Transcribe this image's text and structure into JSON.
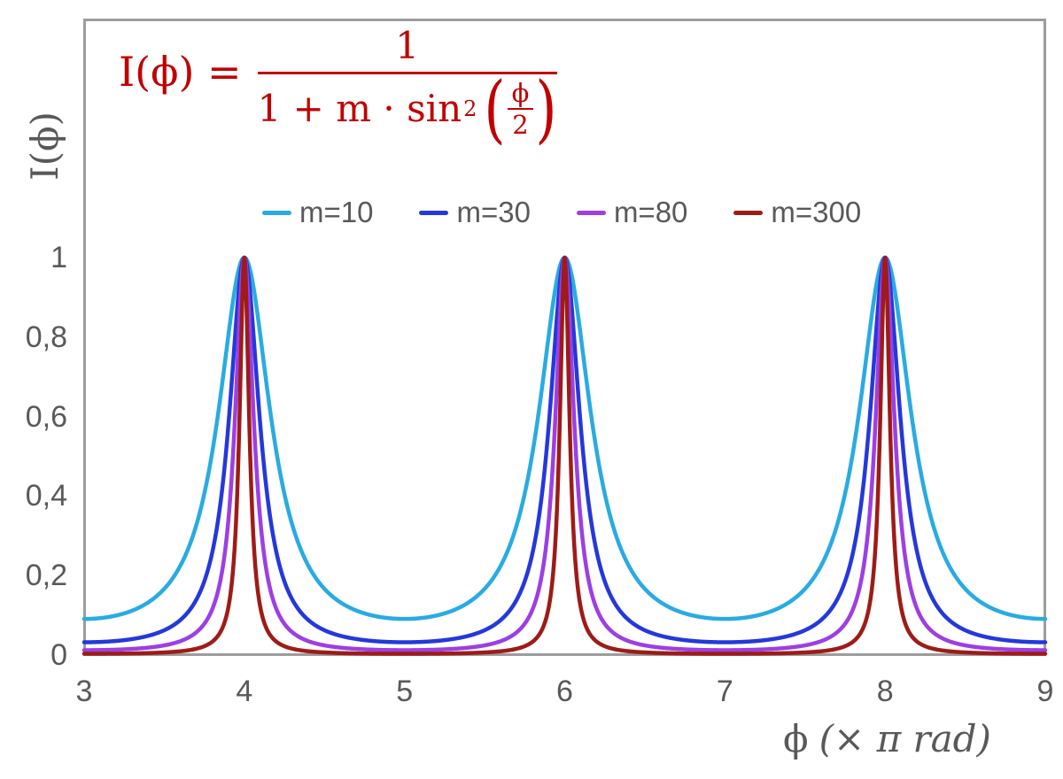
{
  "formula": {
    "lhs": "I(ϕ) =",
    "numerator": "1",
    "den_prefix": "1 + m · sin",
    "den_sup": "2",
    "paren_open": "(",
    "paren_close": ")",
    "inner_num": "ϕ",
    "inner_den": "2",
    "color": "#C00000"
  },
  "legend": {
    "items": [
      {
        "label": "m=10",
        "color": "#29ABE2"
      },
      {
        "label": "m=30",
        "color": "#2438DC"
      },
      {
        "label": "m=80",
        "color": "#9C3FE4"
      },
      {
        "label": "m=300",
        "color": "#9E1B17"
      }
    ]
  },
  "y_axis": {
    "label": "I(ϕ)",
    "ticks": [
      {
        "label": "1",
        "value": 1.0
      },
      {
        "label": "0,8",
        "value": 0.8
      },
      {
        "label": "0,6",
        "value": 0.6
      },
      {
        "label": "0,4",
        "value": 0.4
      },
      {
        "label": "0,2",
        "value": 0.2
      },
      {
        "label": "0",
        "value": 0.0
      }
    ]
  },
  "x_axis": {
    "label_phi": "ϕ",
    "label_unit": "(× π rad)",
    "ticks": [
      {
        "label": "3",
        "value": 3
      },
      {
        "label": "4",
        "value": 4
      },
      {
        "label": "5",
        "value": 5
      },
      {
        "label": "6",
        "value": 6
      },
      {
        "label": "7",
        "value": 7
      },
      {
        "label": "8",
        "value": 8
      },
      {
        "label": "9",
        "value": 9
      }
    ]
  },
  "chart_data": {
    "type": "line",
    "title": "",
    "formula": "I(ϕ) = 1 / (1 + m·sin²(ϕ/2)), ϕ expressed in units of π rad",
    "xlabel": "ϕ (× π rad)",
    "ylabel": "I(ϕ)",
    "xlim": [
      3,
      9
    ],
    "ylim": [
      0,
      1.6
    ],
    "x_ticks": [
      3,
      4,
      5,
      6,
      7,
      8,
      9
    ],
    "y_ticks": [
      0,
      0.2,
      0.4,
      0.6,
      0.8,
      1
    ],
    "grid": false,
    "legend_position": "top-center",
    "axis_color": "#9C9C9C",
    "peaks_at_x": [
      4,
      6,
      8
    ],
    "peak_value": 1,
    "series": [
      {
        "name": "m=10",
        "m": 10,
        "color": "#29ABE2",
        "sample_x": [
          3,
          3.5,
          4,
          4.5,
          5,
          5.5,
          6,
          6.5,
          7,
          7.5,
          8,
          8.5,
          9
        ],
        "sample_y": [
          0.0909,
          0.1667,
          1,
          0.1667,
          0.0909,
          0.1667,
          1,
          0.1667,
          0.0909,
          0.1667,
          1,
          0.1667,
          0.0909
        ]
      },
      {
        "name": "m=30",
        "m": 30,
        "color": "#2438DC",
        "sample_x": [
          3,
          3.5,
          4,
          4.5,
          5,
          5.5,
          6,
          6.5,
          7,
          7.5,
          8,
          8.5,
          9
        ],
        "sample_y": [
          0.0323,
          0.0625,
          1,
          0.0625,
          0.0323,
          0.0625,
          1,
          0.0625,
          0.0323,
          0.0625,
          1,
          0.0625,
          0.0323
        ]
      },
      {
        "name": "m=80",
        "m": 80,
        "color": "#9C3FE4",
        "sample_x": [
          3,
          3.5,
          4,
          4.5,
          5,
          5.5,
          6,
          6.5,
          7,
          7.5,
          8,
          8.5,
          9
        ],
        "sample_y": [
          0.0123,
          0.0244,
          1,
          0.0244,
          0.0123,
          0.0244,
          1,
          0.0244,
          0.0123,
          0.0244,
          1,
          0.0244,
          0.0123
        ]
      },
      {
        "name": "m=300",
        "m": 300,
        "color": "#9E1B17",
        "sample_x": [
          3,
          3.5,
          4,
          4.5,
          5,
          5.5,
          6,
          6.5,
          7,
          7.5,
          8,
          8.5,
          9
        ],
        "sample_y": [
          0.0033,
          0.0066,
          1,
          0.0066,
          0.0033,
          0.0066,
          1,
          0.0066,
          0.0033,
          0.0066,
          1,
          0.0066,
          0.0033
        ]
      }
    ]
  }
}
